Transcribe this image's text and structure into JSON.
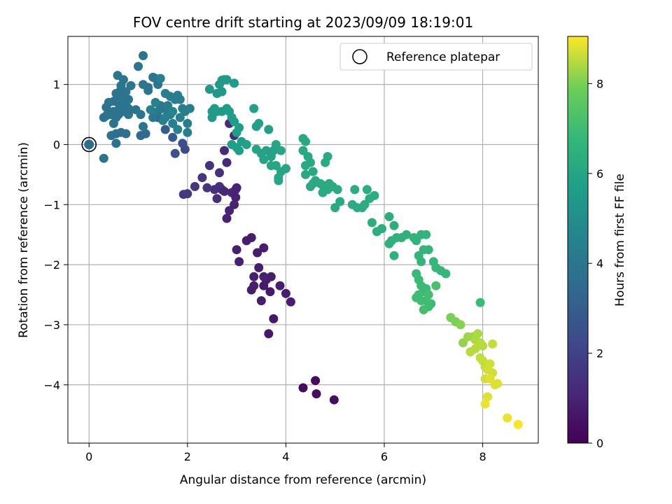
{
  "chart_data": {
    "type": "scatter",
    "title": "FOV centre drift starting at 2023/09/09 18:19:01",
    "xlabel": "Angular distance from reference (arcmin)",
    "ylabel": "Rotation from reference (arcmin)",
    "xlim": [
      -0.43,
      9.13
    ],
    "ylim": [
      -4.97,
      1.8
    ],
    "xticks": [
      0,
      2,
      4,
      6,
      8
    ],
    "xtick_labels": [
      "0",
      "2",
      "4",
      "6",
      "8"
    ],
    "yticks": [
      1,
      0,
      -1,
      -2,
      -3,
      -4
    ],
    "ytick_labels": [
      "1",
      "0",
      "−1",
      "−2",
      "−3",
      "−4"
    ],
    "grid": true,
    "legend": {
      "position": "top-right",
      "entries": [
        "Reference platepar"
      ]
    },
    "reference_point": {
      "x": 0,
      "y": 0
    },
    "colorbar": {
      "label": "Hours from first FF file",
      "colormap": "viridis",
      "range": [
        0,
        9.05
      ],
      "ticks": [
        0,
        2,
        4,
        6,
        8
      ],
      "tick_labels": [
        "0",
        "2",
        "4",
        "6",
        "8"
      ]
    },
    "points": [
      [
        4.35,
        -4.05,
        0.3
      ],
      [
        4.6,
        -3.93,
        0.3
      ],
      [
        4.62,
        -4.15,
        0.4
      ],
      [
        4.98,
        -4.25,
        0.4
      ],
      [
        3.65,
        -3.15,
        0.7
      ],
      [
        3.75,
        -2.9,
        0.7
      ],
      [
        3.68,
        -2.45,
        0.7
      ],
      [
        3.55,
        -2.35,
        0.7
      ],
      [
        3.45,
        -2.05,
        0.8
      ],
      [
        3.5,
        -2.6,
        0.8
      ],
      [
        3.3,
        -2.42,
        0.8
      ],
      [
        3.35,
        -2.35,
        0.8
      ],
      [
        3.2,
        -1.6,
        0.8
      ],
      [
        3.3,
        -1.55,
        0.8
      ],
      [
        3.42,
        -1.8,
        0.8
      ],
      [
        3.55,
        -1.72,
        0.8
      ],
      [
        3.6,
        -2.25,
        0.8
      ],
      [
        3.7,
        -2.2,
        0.8
      ],
      [
        3.88,
        -2.35,
        0.8
      ],
      [
        4.0,
        -2.48,
        0.8
      ],
      [
        4.1,
        -2.62,
        0.8
      ],
      [
        3.0,
        -1.75,
        0.9
      ],
      [
        3.05,
        -1.95,
        0.9
      ],
      [
        3.35,
        -2.2,
        0.9
      ],
      [
        3.55,
        -2.2,
        0.9
      ],
      [
        2.95,
        -1.0,
        1.0
      ],
      [
        2.8,
        -1.23,
        1.0
      ],
      [
        2.85,
        -1.1,
        1.0
      ],
      [
        2.9,
        -0.8,
        1.1
      ],
      [
        2.75,
        -0.1,
        1.2
      ],
      [
        2.8,
        -0.3,
        1.2
      ],
      [
        2.7,
        -0.75,
        1.3
      ],
      [
        2.6,
        -0.9,
        1.3
      ],
      [
        2.65,
        -0.7,
        1.4
      ],
      [
        2.55,
        -0.75,
        1.4
      ],
      [
        2.4,
        -0.72,
        1.5
      ],
      [
        2.45,
        -0.35,
        1.5
      ],
      [
        2.3,
        -0.55,
        1.6
      ],
      [
        2.15,
        -0.7,
        1.6
      ],
      [
        2.0,
        -0.82,
        1.7
      ],
      [
        1.92,
        -0.83,
        1.7
      ],
      [
        2.65,
        -0.47,
        1.4
      ],
      [
        2.85,
        0.35,
        1.2
      ],
      [
        2.95,
        0.15,
        1.2
      ],
      [
        2.98,
        -0.75,
        1.0
      ],
      [
        3.0,
        -0.72,
        1.0
      ],
      [
        2.98,
        -0.88,
        1.0
      ],
      [
        2.75,
        -0.78,
        1.1
      ],
      [
        1.95,
        -0.08,
        2.3
      ],
      [
        1.9,
        0.02,
        2.5
      ],
      [
        1.75,
        -0.15,
        2.6
      ],
      [
        1.7,
        0.12,
        2.9
      ],
      [
        1.55,
        0.25,
        3.0
      ],
      [
        1.4,
        0.45,
        3.3
      ],
      [
        1.15,
        0.18,
        3.5
      ],
      [
        1.05,
        0.15,
        3.5
      ],
      [
        0.65,
        0.2,
        3.7
      ],
      [
        0.55,
        0.18,
        3.7
      ],
      [
        0.75,
        0.18,
        3.8
      ],
      [
        0.55,
        0.02,
        3.8
      ],
      [
        0.3,
        -0.23,
        3.8
      ],
      [
        0.45,
        0.15,
        3.8
      ],
      [
        0.5,
        0.35,
        3.9
      ],
      [
        0.6,
        0.5,
        3.9
      ],
      [
        0.7,
        0.55,
        3.9
      ],
      [
        0.8,
        0.6,
        3.9
      ],
      [
        0.95,
        0.58,
        3.9
      ],
      [
        0.3,
        0.45,
        3.9
      ],
      [
        0.35,
        0.62,
        3.9
      ],
      [
        0.4,
        0.7,
        3.9
      ],
      [
        0.5,
        0.72,
        3.9
      ],
      [
        0.6,
        0.78,
        3.9
      ],
      [
        0.7,
        0.8,
        3.9
      ],
      [
        0.75,
        0.7,
        3.9
      ],
      [
        0.55,
        0.85,
        3.9
      ],
      [
        0.65,
        0.92,
        3.9
      ],
      [
        0.5,
        0.55,
        3.9
      ],
      [
        0.55,
        0.45,
        3.9
      ],
      [
        0.45,
        0.5,
        3.9
      ],
      [
        0.4,
        0.55,
        3.9
      ],
      [
        0.35,
        0.48,
        3.9
      ],
      [
        0.8,
        0.5,
        3.9
      ],
      [
        0.62,
        0.65,
        3.9
      ],
      [
        0.68,
        0.6,
        3.9
      ],
      [
        0.58,
        1.15,
        4.0
      ],
      [
        0.7,
        1.08,
        4.0
      ],
      [
        0.85,
        0.98,
        4.0
      ],
      [
        0.65,
        0.98,
        4.0
      ],
      [
        0.75,
        0.88,
        4.0
      ],
      [
        0.8,
        0.75,
        4.0
      ],
      [
        1.0,
        1.3,
        4.0
      ],
      [
        1.1,
        1.48,
        4.0
      ],
      [
        1.1,
        1.0,
        4.0
      ],
      [
        1.2,
        0.9,
        4.0
      ],
      [
        1.3,
        1.12,
        4.0
      ],
      [
        1.2,
        0.95,
        4.0
      ],
      [
        1.35,
        1.1,
        4.0
      ],
      [
        1.4,
        1.0,
        4.0
      ],
      [
        1.05,
        0.5,
        4.0
      ],
      [
        1.1,
        0.3,
        4.0
      ],
      [
        1.3,
        0.45,
        4.1
      ],
      [
        1.4,
        0.55,
        4.1
      ],
      [
        1.45,
        0.65,
        4.1
      ],
      [
        1.5,
        0.6,
        4.1
      ],
      [
        1.6,
        0.55,
        4.1
      ],
      [
        1.65,
        0.5,
        4.2
      ],
      [
        1.7,
        0.35,
        4.3
      ],
      [
        1.75,
        0.75,
        4.3
      ],
      [
        1.85,
        0.75,
        4.3
      ],
      [
        1.9,
        0.6,
        4.3
      ],
      [
        1.95,
        0.55,
        4.4
      ],
      [
        2.0,
        0.35,
        4.4
      ],
      [
        2.0,
        0.2,
        4.4
      ],
      [
        2.05,
        0.6,
        4.4
      ],
      [
        1.85,
        0.45,
        4.4
      ],
      [
        1.6,
        0.65,
        4.4
      ],
      [
        1.55,
        0.85,
        4.4
      ],
      [
        1.65,
        0.8,
        4.4
      ],
      [
        1.8,
        0.82,
        4.4
      ],
      [
        1.45,
        1.1,
        4.5
      ],
      [
        1.5,
        0.4,
        4.5
      ],
      [
        1.35,
        0.7,
        4.5
      ],
      [
        1.25,
        0.58,
        4.5
      ],
      [
        1.55,
        0.45,
        4.5
      ],
      [
        1.7,
        0.55,
        4.6
      ],
      [
        1.8,
        0.25,
        4.6
      ],
      [
        2.45,
        0.92,
        5.4
      ],
      [
        2.6,
        0.85,
        5.4
      ],
      [
        2.7,
        0.88,
        5.4
      ],
      [
        2.65,
        1.0,
        5.5
      ],
      [
        2.75,
        1.08,
        5.5
      ],
      [
        2.8,
        1.08,
        5.5
      ],
      [
        2.7,
        1.07,
        5.5
      ],
      [
        2.95,
        1.02,
        5.5
      ],
      [
        2.5,
        0.45,
        5.5
      ],
      [
        2.5,
        0.55,
        5.5
      ],
      [
        2.55,
        0.6,
        5.6
      ],
      [
        2.6,
        0.55,
        5.6
      ],
      [
        2.7,
        0.55,
        5.6
      ],
      [
        2.8,
        0.6,
        5.6
      ],
      [
        2.85,
        0.55,
        5.6
      ],
      [
        2.9,
        0.45,
        5.6
      ],
      [
        2.95,
        0.38,
        5.6
      ],
      [
        3.05,
        0.28,
        5.7
      ],
      [
        3.0,
        0.2,
        5.7
      ],
      [
        3.1,
        0.05,
        5.7
      ],
      [
        3.0,
        -0.05,
        5.7
      ],
      [
        2.9,
        0.0,
        5.7
      ],
      [
        3.05,
        -0.1,
        5.7
      ],
      [
        3.2,
        0.0,
        5.8
      ],
      [
        3.4,
        0.3,
        5.8
      ],
      [
        3.45,
        0.35,
        5.8
      ],
      [
        3.35,
        0.6,
        5.8
      ],
      [
        3.65,
        0.25,
        5.8
      ],
      [
        3.4,
        -0.08,
        5.9
      ],
      [
        3.5,
        -0.15,
        5.9
      ],
      [
        3.55,
        -0.25,
        5.9
      ],
      [
        3.6,
        -0.1,
        5.9
      ],
      [
        3.7,
        -0.2,
        5.9
      ],
      [
        3.75,
        -0.1,
        5.9
      ],
      [
        3.8,
        0.0,
        6.0
      ],
      [
        3.9,
        -0.1,
        6.0
      ],
      [
        3.7,
        -0.35,
        6.0
      ],
      [
        3.8,
        -0.35,
        6.0
      ],
      [
        3.9,
        -0.45,
        6.0
      ],
      [
        3.85,
        -0.55,
        6.0
      ],
      [
        4.0,
        -0.4,
        6.0
      ],
      [
        3.85,
        -0.6,
        6.0
      ],
      [
        4.35,
        0.1,
        6.1
      ],
      [
        4.4,
        0.05,
        6.1
      ],
      [
        4.35,
        -0.1,
        6.1
      ],
      [
        4.45,
        -0.2,
        6.1
      ],
      [
        4.5,
        -0.3,
        6.1
      ],
      [
        4.4,
        -0.35,
        6.1
      ],
      [
        4.55,
        -0.45,
        6.1
      ],
      [
        4.4,
        -0.5,
        6.1
      ],
      [
        4.6,
        -0.6,
        6.1
      ],
      [
        4.5,
        -0.7,
        6.1
      ],
      [
        4.55,
        -0.65,
        6.2
      ],
      [
        4.7,
        -0.65,
        6.2
      ],
      [
        4.75,
        -0.8,
        6.2
      ],
      [
        4.8,
        -0.7,
        6.2
      ],
      [
        4.85,
        -0.75,
        6.2
      ],
      [
        4.95,
        -0.7,
        6.2
      ],
      [
        5.05,
        -0.75,
        6.2
      ],
      [
        5.1,
        -0.95,
        6.2
      ],
      [
        5.0,
        -1.05,
        6.2
      ],
      [
        4.8,
        -0.3,
        6.2
      ],
      [
        4.85,
        -0.2,
        6.2
      ],
      [
        4.75,
        -0.68,
        6.2
      ],
      [
        4.88,
        -0.65,
        6.2
      ],
      [
        5.35,
        -1.0,
        6.3
      ],
      [
        5.45,
        -1.05,
        6.3
      ],
      [
        5.55,
        -1.05,
        6.3
      ],
      [
        5.6,
        -1.0,
        6.3
      ],
      [
        5.7,
        -0.9,
        6.3
      ],
      [
        5.8,
        -0.85,
        6.3
      ],
      [
        5.65,
        -0.75,
        6.3
      ],
      [
        5.4,
        -0.75,
        6.3
      ],
      [
        5.75,
        -1.3,
        6.4
      ],
      [
        5.85,
        -1.45,
        6.4
      ],
      [
        5.95,
        -1.4,
        6.4
      ],
      [
        6.1,
        -1.2,
        6.4
      ],
      [
        6.2,
        -1.35,
        6.4
      ],
      [
        6.15,
        -1.6,
        6.5
      ],
      [
        6.25,
        -1.55,
        6.5
      ],
      [
        6.35,
        -1.55,
        6.5
      ],
      [
        6.45,
        -1.5,
        6.5
      ],
      [
        6.2,
        -1.85,
        6.5
      ],
      [
        6.1,
        -1.65,
        6.5
      ],
      [
        6.6,
        -1.55,
        6.6
      ],
      [
        6.65,
        -1.6,
        6.6
      ],
      [
        6.75,
        -1.5,
        6.6
      ],
      [
        6.85,
        -1.5,
        6.6
      ],
      [
        6.8,
        -1.75,
        6.7
      ],
      [
        6.7,
        -1.85,
        6.7
      ],
      [
        6.75,
        -1.95,
        6.7
      ],
      [
        6.9,
        -1.75,
        6.7
      ],
      [
        7.0,
        -1.95,
        6.8
      ],
      [
        7.05,
        -2.05,
        6.8
      ],
      [
        7.15,
        -2.1,
        6.8
      ],
      [
        7.25,
        -2.15,
        6.8
      ],
      [
        6.65,
        -2.15,
        6.9
      ],
      [
        6.7,
        -2.25,
        6.9
      ],
      [
        6.75,
        -2.35,
        6.9
      ],
      [
        6.8,
        -2.45,
        6.9
      ],
      [
        6.85,
        -2.4,
        6.9
      ],
      [
        6.7,
        -2.5,
        7.0
      ],
      [
        6.75,
        -2.6,
        7.0
      ],
      [
        6.85,
        -2.6,
        7.0
      ],
      [
        6.9,
        -2.7,
        7.0
      ],
      [
        6.95,
        -2.65,
        7.0
      ],
      [
        6.65,
        -2.55,
        7.0
      ],
      [
        6.8,
        -2.75,
        7.1
      ],
      [
        6.9,
        -2.5,
        7.1
      ],
      [
        7.05,
        -2.35,
        7.2
      ],
      [
        7.95,
        -2.63,
        6.9
      ],
      [
        7.45,
        -2.95,
        8.0
      ],
      [
        7.35,
        -2.88,
        8.0
      ],
      [
        7.55,
        -3.0,
        8.1
      ],
      [
        7.6,
        -3.3,
        8.2
      ],
      [
        7.7,
        -3.2,
        8.3
      ],
      [
        7.8,
        -3.2,
        8.3
      ],
      [
        7.85,
        -3.25,
        8.4
      ],
      [
        7.9,
        -3.15,
        8.4
      ],
      [
        7.95,
        -3.3,
        8.5
      ],
      [
        8.0,
        -3.35,
        8.5
      ],
      [
        7.85,
        -3.4,
        8.5
      ],
      [
        7.75,
        -3.45,
        8.5
      ],
      [
        7.95,
        -3.55,
        8.6
      ],
      [
        8.0,
        -3.6,
        8.6
      ],
      [
        8.05,
        -3.7,
        8.6
      ],
      [
        8.1,
        -3.75,
        8.7
      ],
      [
        8.15,
        -3.65,
        8.7
      ],
      [
        8.2,
        -3.8,
        8.7
      ],
      [
        8.05,
        -3.9,
        8.7
      ],
      [
        8.15,
        -3.9,
        8.8
      ],
      [
        8.25,
        -4.0,
        8.8
      ],
      [
        8.3,
        -3.98,
        8.8
      ],
      [
        8.1,
        -4.2,
        8.8
      ],
      [
        8.05,
        -4.32,
        8.9
      ],
      [
        8.2,
        -3.32,
        8.6
      ],
      [
        8.5,
        -4.55,
        8.9
      ],
      [
        8.72,
        -4.66,
        9.0
      ]
    ]
  }
}
